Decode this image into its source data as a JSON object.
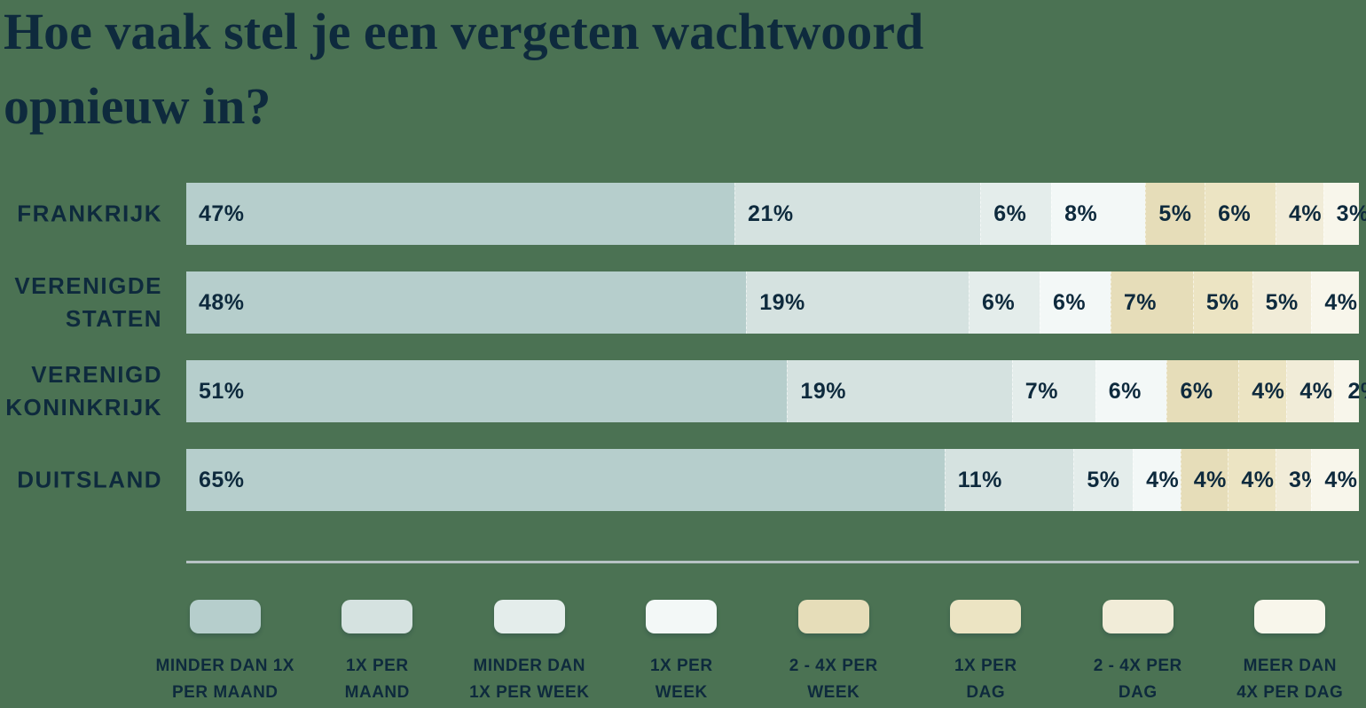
{
  "title": "Hoe vaak stel je een vergeten wachtwoord opnieuw in?",
  "title_lines": {
    "0": "Hoe vaak stel je een vergeten wachtwoord",
    "1": "opnieuw in?"
  },
  "colors": {
    "background": "#4b7253",
    "text": "#0e2a3d",
    "divider": "#b7c2c4"
  },
  "chart_data": {
    "type": "bar",
    "variant": "horizontal-stacked",
    "unit": "%",
    "title": "Hoe vaak stel je een vergeten wachtwoord opnieuw in?",
    "categories": [
      "Frankrijk",
      "Verenigde Staten",
      "Verenigd Koninkrijk",
      "Duitsland"
    ],
    "category_label_lines": [
      [
        "FRANKRIJK"
      ],
      [
        "VERENIGDE",
        "STATEN"
      ],
      [
        "VERENIGD",
        "KONINKRIJK"
      ],
      [
        "DUITSLAND"
      ]
    ],
    "xlim": [
      0,
      100
    ],
    "grid": false,
    "legend_position": "bottom",
    "series": [
      {
        "name": "Minder dan 1x per maand",
        "color": "#b6cecc",
        "values": [
          47,
          48,
          51,
          65
        ]
      },
      {
        "name": "1x per maand",
        "color": "#d5e2e0",
        "values": [
          21,
          19,
          19,
          11
        ]
      },
      {
        "name": "Minder dan 1x per week",
        "color": "#e4edeb",
        "values": [
          6,
          6,
          7,
          5
        ]
      },
      {
        "name": "1x per week",
        "color": "#f3f8f7",
        "values": [
          8,
          6,
          6,
          4
        ]
      },
      {
        "name": "2 - 4x per week",
        "color": "#e6ddb9",
        "values": [
          5,
          7,
          6,
          4
        ]
      },
      {
        "name": "1x per dag",
        "color": "#ece4c3",
        "values": [
          6,
          5,
          4,
          4
        ]
      },
      {
        "name": "2 - 4x per dag",
        "color": "#f1ecd8",
        "values": [
          4,
          5,
          4,
          3
        ]
      },
      {
        "name": "Meer dan 4x per dag",
        "color": "#f8f6eb",
        "values": [
          3,
          4,
          2,
          4
        ]
      }
    ],
    "legend": [
      {
        "label_lines": [
          "MINDER DAN 1X",
          "PER MAAND"
        ]
      },
      {
        "label_lines": [
          "1X PER",
          "MAAND"
        ]
      },
      {
        "label_lines": [
          "MINDER DAN",
          "1X PER WEEK"
        ]
      },
      {
        "label_lines": [
          "1X PER",
          "WEEK"
        ]
      },
      {
        "label_lines": [
          "2 - 4X PER",
          "WEEK"
        ]
      },
      {
        "label_lines": [
          "1X PER",
          "DAG"
        ]
      },
      {
        "label_lines": [
          "2 - 4X PER",
          "DAG"
        ]
      },
      {
        "label_lines": [
          "MEER DAN",
          "4X PER DAG"
        ]
      }
    ]
  }
}
